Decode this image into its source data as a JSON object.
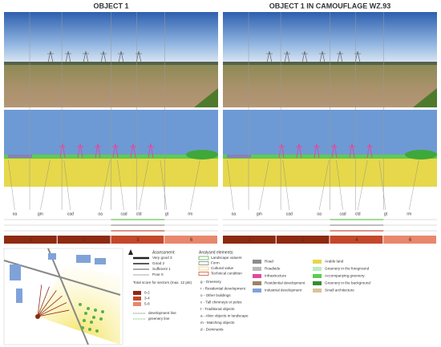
{
  "panels": [
    {
      "title": "OBJECT 1",
      "sector_labels": [
        "oa",
        "gm",
        "cad",
        "oa",
        "cad",
        "ctd",
        "gt",
        "rm"
      ],
      "scores": [
        "1",
        "1",
        "3",
        "6"
      ]
    },
    {
      "title": "OBJECT 1 IN CAMOUFLAGE WZ.93",
      "sector_labels": [
        "oa",
        "gm",
        "cad",
        "oa",
        "cad",
        "ctd",
        "gt",
        "rm"
      ],
      "scores": [
        "1",
        "2",
        "4",
        "6"
      ]
    }
  ],
  "assessment": {
    "title": "Assessment:",
    "items": [
      "Very good 3",
      "Good 2",
      "Sufficient 1",
      "Poor 0"
    ]
  },
  "total_score": {
    "title": "Total score for sectors (max. 12 pts)",
    "items": [
      "0-2",
      "3-4",
      "5-8"
    ]
  },
  "lines": [
    "development line",
    "greenery line"
  ],
  "analysed": {
    "title": "Analysed elements:",
    "items": [
      "Landscape valuers",
      "Form",
      "Cultural value",
      "Technical condition"
    ]
  },
  "abbreviations": [
    "g - Greenery",
    "r - Residential development",
    "o - Other buildings",
    "c - Tall chimneys or poles",
    "t - Traditional objects",
    "a - Alien objects in landscape",
    "m - Matching objects",
    "d - Dominants"
  ],
  "land_use": [
    "Road",
    "Roadside",
    "Infrastructure",
    "Residential development",
    "Industrial development"
  ],
  "land_use_2": [
    "Arable land",
    "Greenery in the foreground",
    "Accompanying greenery",
    "Greenery in the background",
    "Small architecture"
  ]
}
